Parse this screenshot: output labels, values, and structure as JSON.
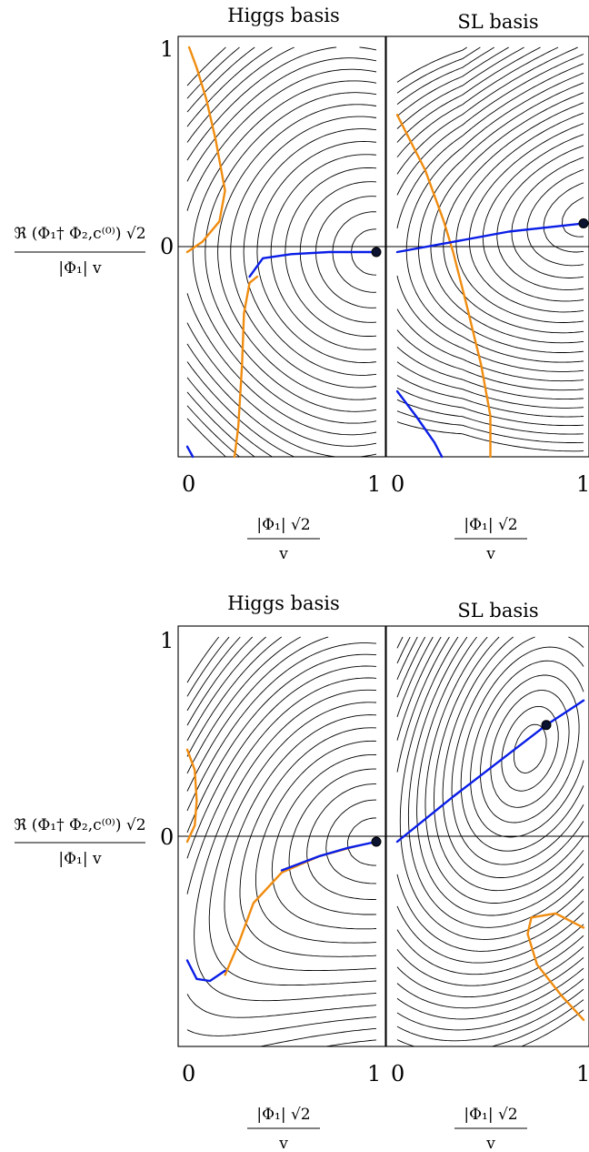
{
  "chart_data": [
    {
      "type": "contour",
      "panels": [
        {
          "title": "Higgs basis",
          "xlim": [
            0,
            1
          ],
          "ylim": [
            -1,
            1
          ],
          "xticks": [
            "0",
            "1"
          ],
          "yticks": [
            "1",
            "0"
          ],
          "xlabel": {
            "num": "|Φ₁| √2",
            "den": "v"
          },
          "ylabel": {
            "num": "ℜ (Φ₁† Φ₂,c⁽⁰⁾) √2",
            "den": "|Φ₁| v"
          },
          "orange_curves": [
            [
              [
                0.01,
                1.0
              ],
              [
                0.05,
                0.9
              ],
              [
                0.1,
                0.75
              ],
              [
                0.15,
                0.55
              ],
              [
                0.2,
                0.3
              ],
              [
                0.17,
                0.15
              ],
              [
                0.08,
                0.05
              ],
              [
                0.0,
                0.0
              ]
            ],
            [
              [
                0.37,
                -0.12
              ],
              [
                0.33,
                -0.15
              ],
              [
                0.3,
                -0.3
              ],
              [
                0.29,
                -0.55
              ],
              [
                0.27,
                -0.85
              ],
              [
                0.25,
                -1.0
              ]
            ]
          ],
          "blue_curves": [
            [
              [
                0.33,
                -0.12
              ],
              [
                0.4,
                -0.03
              ],
              [
                0.55,
                -0.01
              ],
              [
                0.75,
                0.0
              ],
              [
                1.0,
                0.0
              ]
            ],
            [
              [
                0.0,
                -0.95
              ],
              [
                0.03,
                -1.0
              ]
            ]
          ],
          "minimum": [
            1.0,
            0.0
          ],
          "contour_levels": 20
        },
        {
          "title": "SL basis",
          "xlim": [
            0,
            1
          ],
          "ylim": [
            -1,
            1
          ],
          "xticks": [
            "0",
            "1"
          ],
          "yticks": [],
          "xlabel": {
            "num": "|Φ₁| √2",
            "den": "v"
          },
          "orange_curves": [
            [
              [
                0.0,
                0.67
              ],
              [
                0.15,
                0.4
              ],
              [
                0.25,
                0.15
              ],
              [
                0.3,
                0.0
              ],
              [
                0.37,
                -0.25
              ],
              [
                0.45,
                -0.55
              ],
              [
                0.5,
                -0.8
              ],
              [
                0.5,
                -1.0
              ]
            ]
          ],
          "blue_curves": [
            [
              [
                0.0,
                0.0
              ],
              [
                0.3,
                0.05
              ],
              [
                0.6,
                0.1
              ],
              [
                1.0,
                0.14
              ]
            ],
            [
              [
                0.0,
                -0.68
              ],
              [
                0.1,
                -0.8
              ],
              [
                0.2,
                -0.93
              ],
              [
                0.24,
                -1.0
              ]
            ]
          ],
          "minimum": [
            1.0,
            0.14
          ],
          "contour_levels": 22
        }
      ]
    },
    {
      "type": "contour",
      "panels": [
        {
          "title": "Higgs basis",
          "xlim": [
            0,
            1
          ],
          "ylim": [
            -1,
            1
          ],
          "xticks": [
            "0",
            "1"
          ],
          "yticks": [
            "1",
            "0"
          ],
          "xlabel": {
            "num": "|Φ₁| √2",
            "den": "v"
          },
          "ylabel": {
            "num": "ℜ (Φ₁† Φ₂,c⁽⁰⁾) √2",
            "den": "|Φ₁| v"
          },
          "orange_curves": [
            [
              [
                0.0,
                0.45
              ],
              [
                0.04,
                0.35
              ],
              [
                0.05,
                0.2
              ],
              [
                0.04,
                0.08
              ],
              [
                0.0,
                0.0
              ]
            ],
            [
              [
                0.2,
                -0.65
              ],
              [
                0.27,
                -0.5
              ],
              [
                0.35,
                -0.3
              ],
              [
                0.5,
                -0.15
              ],
              [
                0.7,
                -0.07
              ],
              [
                0.9,
                -0.02
              ]
            ]
          ],
          "blue_curves": [
            [
              [
                0.0,
                -0.58
              ],
              [
                0.05,
                -0.67
              ],
              [
                0.12,
                -0.68
              ],
              [
                0.2,
                -0.63
              ]
            ],
            [
              [
                0.5,
                -0.14
              ],
              [
                0.7,
                -0.07
              ],
              [
                0.85,
                -0.03
              ],
              [
                1.0,
                0.0
              ]
            ]
          ],
          "minimum": [
            1.0,
            0.0
          ],
          "contour_levels": 22
        },
        {
          "title": "SL basis",
          "xlim": [
            0,
            1
          ],
          "ylim": [
            -1,
            1
          ],
          "xticks": [
            "0",
            "1"
          ],
          "yticks": [],
          "xlabel": {
            "num": "|Φ₁| √2",
            "den": "v"
          },
          "orange_curves": [
            [
              [
                1.0,
                -0.42
              ],
              [
                0.85,
                -0.35
              ],
              [
                0.72,
                -0.37
              ],
              [
                0.7,
                -0.45
              ],
              [
                0.75,
                -0.6
              ],
              [
                0.88,
                -0.75
              ],
              [
                1.0,
                -0.87
              ]
            ]
          ],
          "blue_curves": [
            [
              [
                0.0,
                0.0
              ],
              [
                0.3,
                0.22
              ],
              [
                0.6,
                0.43
              ],
              [
                0.8,
                0.57
              ],
              [
                1.0,
                0.69
              ]
            ]
          ],
          "minimum": [
            0.8,
            0.57
          ],
          "contour_levels": 24
        }
      ]
    }
  ]
}
